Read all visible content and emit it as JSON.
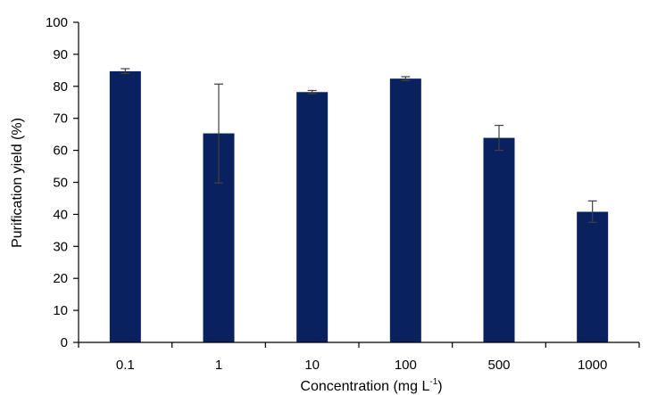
{
  "chart_data": {
    "type": "bar",
    "categories": [
      "0.1",
      "1",
      "10",
      "100",
      "500",
      "1000"
    ],
    "values": [
      84.7,
      65.3,
      78.2,
      82.4,
      63.9,
      40.8
    ],
    "error_low": [
      84.0,
      49.8,
      77.7,
      81.8,
      60.0,
      37.5
    ],
    "error_high": [
      85.5,
      80.7,
      78.7,
      83.0,
      67.8,
      44.2
    ],
    "xlabel_main": "Concentration (mg L",
    "xlabel_sup": "-1",
    "xlabel_end": ")",
    "ylabel": "Purification yield (%)",
    "ylim": [
      0,
      100
    ],
    "yticks": [
      "0",
      "10",
      "20",
      "30",
      "40",
      "50",
      "60",
      "70",
      "80",
      "90",
      "100"
    ],
    "bar_color": "#0a2160",
    "error_bar_color": "#404040",
    "grid": false
  }
}
